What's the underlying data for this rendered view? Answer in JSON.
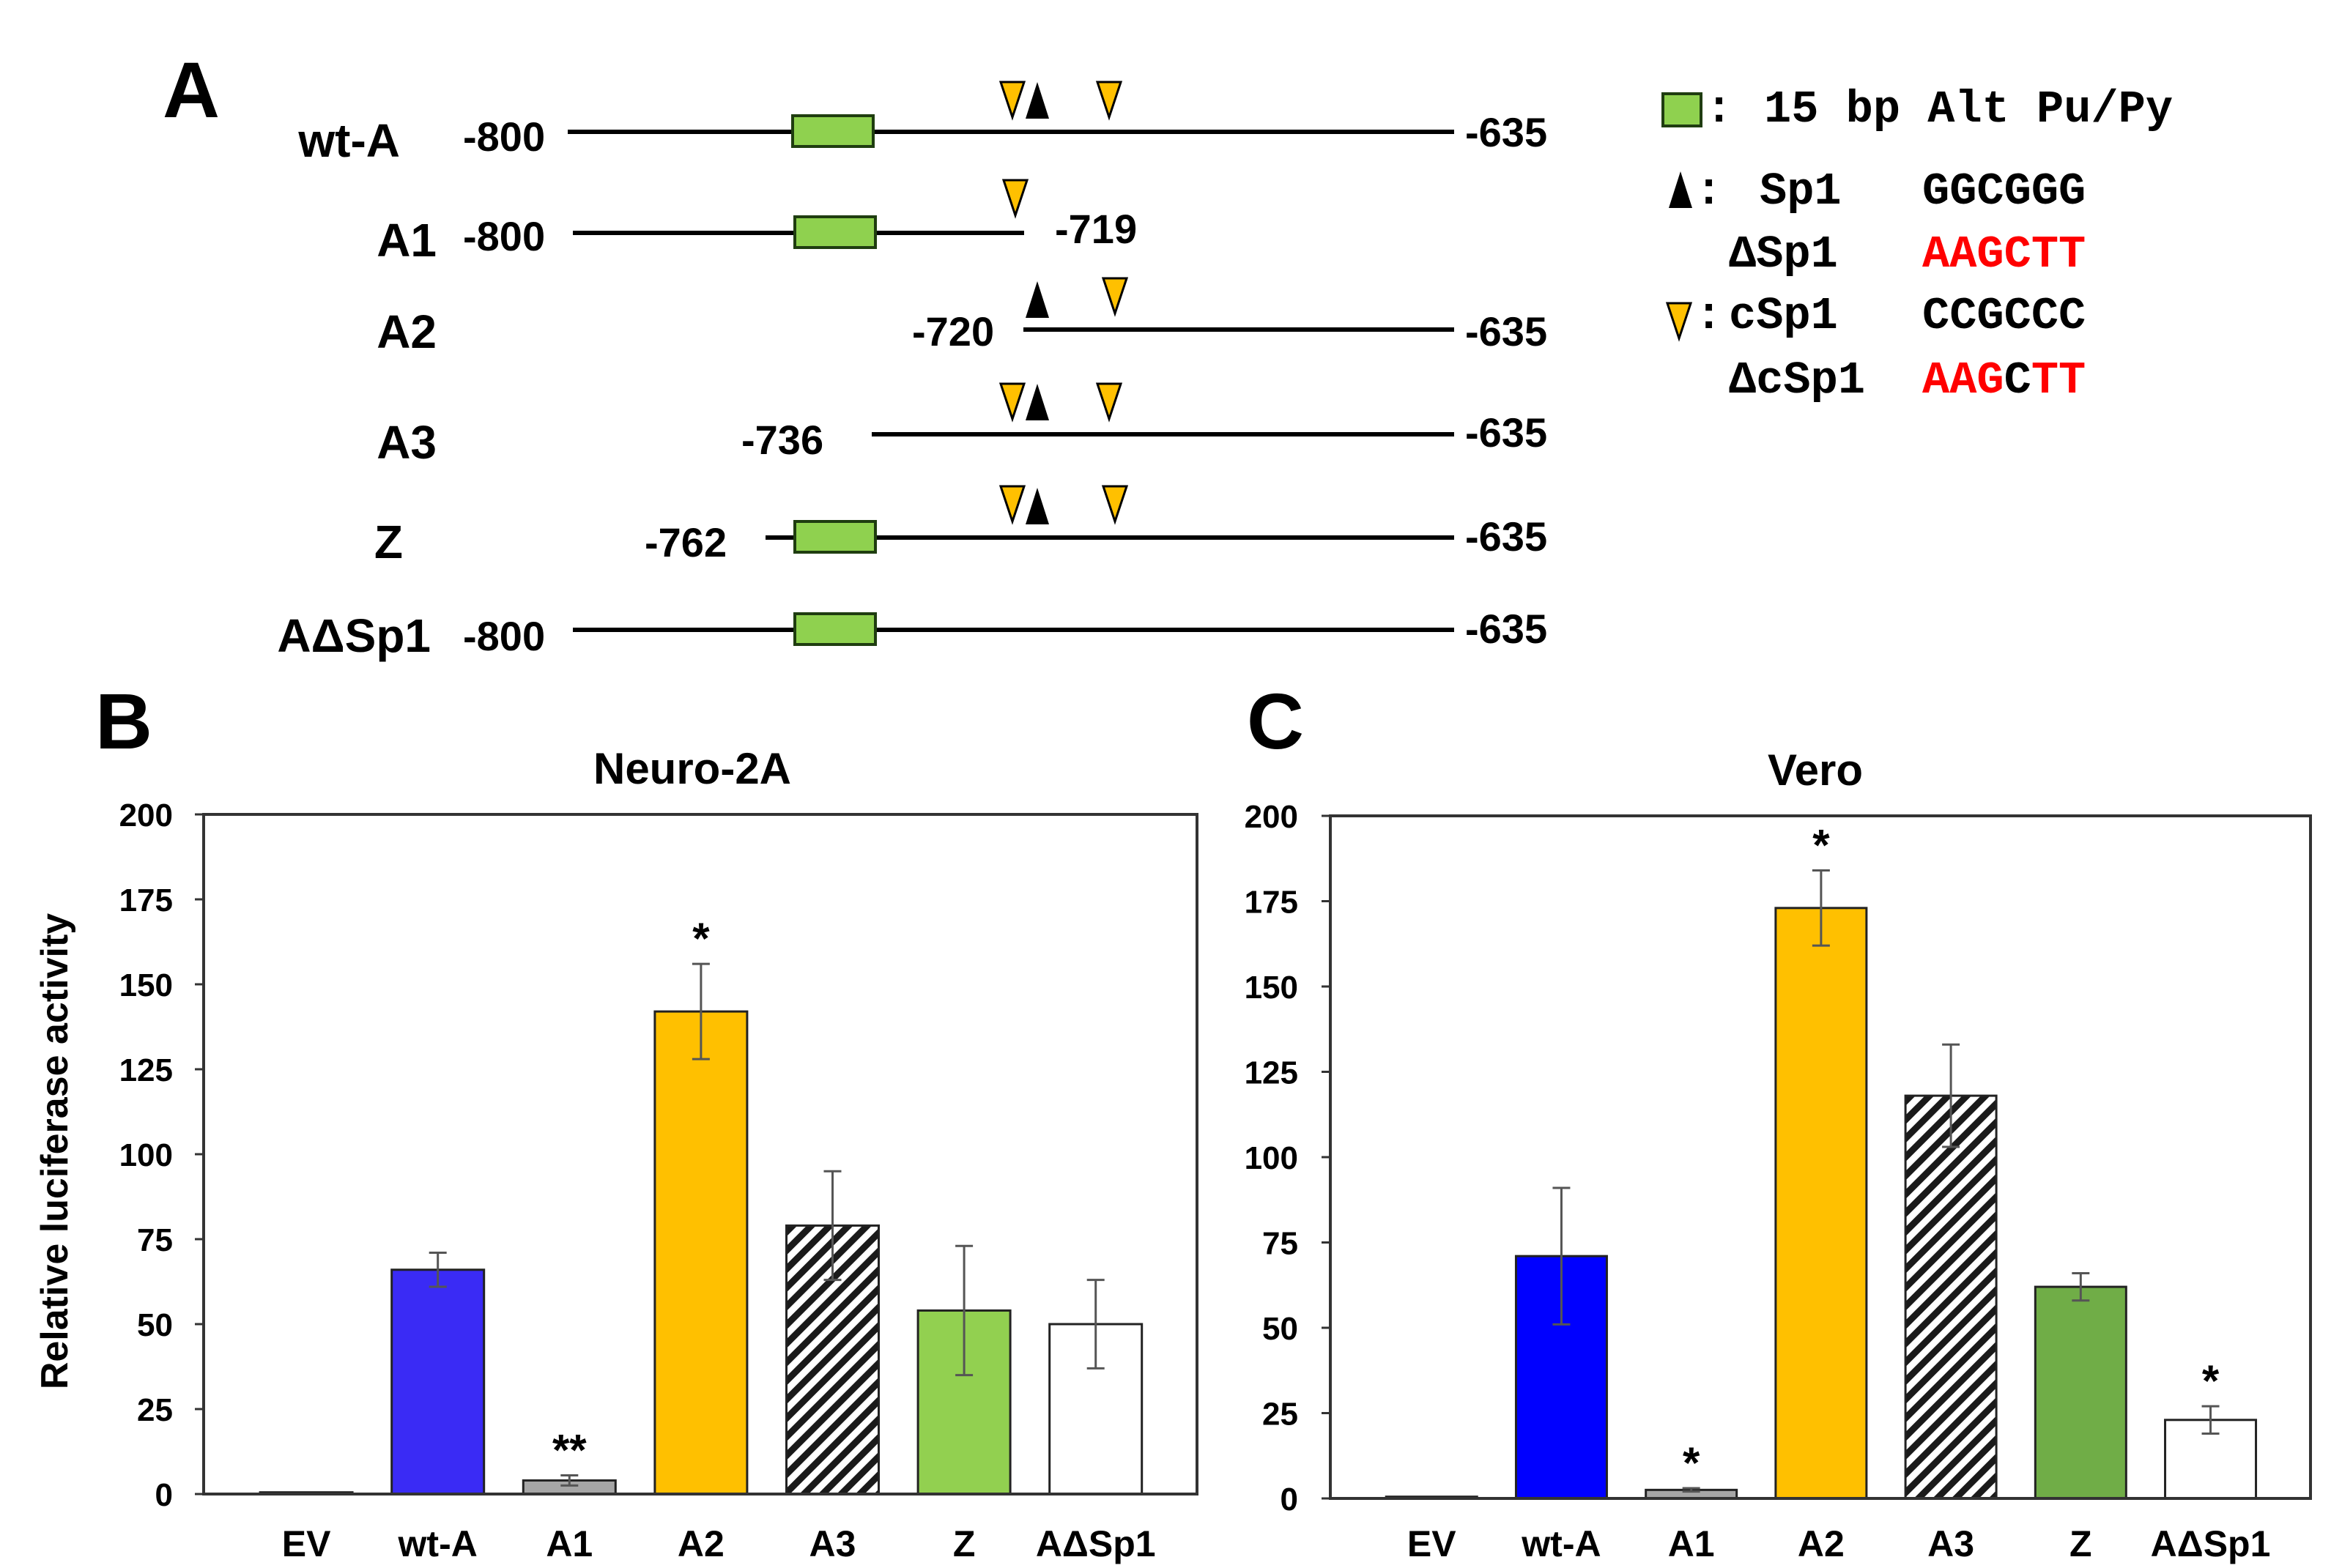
{
  "panel_a": {
    "letter": "A",
    "constructs": [
      {
        "name": "wt-A",
        "start": "-800",
        "end": "-635"
      },
      {
        "name": "A1",
        "start": "-800",
        "end": "-719"
      },
      {
        "name": "A2",
        "start": "-720",
        "end": "-635"
      },
      {
        "name": "A3",
        "start": "-736",
        "end": "-635"
      },
      {
        "name": "Z",
        "start": "-762",
        "end": "-635"
      },
      {
        "name": "AΔSp1",
        "start": "-800",
        "end": "-635"
      }
    ],
    "legend": {
      "pupy_sep": ":",
      "pupy_label": "15 bp Alt Pu/Py",
      "sp1_sep": ":",
      "sp1_name": "Sp1",
      "sp1_seq": "GGCGGG",
      "dsp1_name": "ΔSp1",
      "dsp1_seq": "AAGCTT",
      "csp1_sep": ":",
      "csp1_name": "cSp1",
      "csp1_seq": "CCGCCC",
      "dcsp1_name": "ΔcSp1",
      "dcsp1_seq_a": "AAG",
      "dcsp1_seq_b": "C",
      "dcsp1_seq_c": "TT"
    }
  },
  "colors": {
    "pupy_box": "#8FD14F",
    "sp1_marker": "#000000",
    "csp1_marker": "#FFC000",
    "mutation_text": "#FF0000",
    "axis": "#333333"
  },
  "chart_data": [
    {
      "panel": "B",
      "type": "bar",
      "title": "Neuro-2A",
      "xlabel": "",
      "ylabel": "Relative luciferase activity",
      "ylim": [
        0,
        200
      ],
      "yticks": [
        "0",
        "25",
        "50",
        "75",
        "100",
        "125",
        "150",
        "175",
        "200"
      ],
      "categories": [
        "EV",
        "wt-A",
        "A1",
        "A2",
        "A3",
        "Z",
        "AΔSp1"
      ],
      "values": [
        0.5,
        66,
        4,
        142,
        79,
        54,
        50
      ],
      "errors": [
        0,
        5,
        1.5,
        14,
        16,
        19,
        13
      ],
      "annotations": [
        "",
        "",
        "**",
        "*",
        "",
        "",
        ""
      ],
      "fills": [
        "#ffffff",
        "#3A2BF5",
        "#A6A6A6",
        "#FFC000",
        "hatch",
        "#92D050",
        "#ffffff"
      ]
    },
    {
      "panel": "C",
      "type": "bar",
      "title": "Vero",
      "xlabel": "",
      "ylabel": "",
      "ylim": [
        0,
        200
      ],
      "yticks": [
        "0",
        "25",
        "50",
        "75",
        "100",
        "125",
        "150",
        "175",
        "200"
      ],
      "categories": [
        "EV",
        "wt-A",
        "A1",
        "A2",
        "A3",
        "Z",
        "AΔSp1"
      ],
      "values": [
        0.5,
        71,
        2.5,
        173,
        118,
        62,
        23
      ],
      "errors": [
        0,
        20,
        0.5,
        11,
        15,
        4,
        4
      ],
      "annotations": [
        "",
        "",
        "*",
        "*",
        "",
        "",
        "*"
      ],
      "fills": [
        "#ffffff",
        "#0000FF",
        "#A6A6A6",
        "#FFC000",
        "hatch",
        "#70AD47",
        "#ffffff"
      ]
    }
  ]
}
